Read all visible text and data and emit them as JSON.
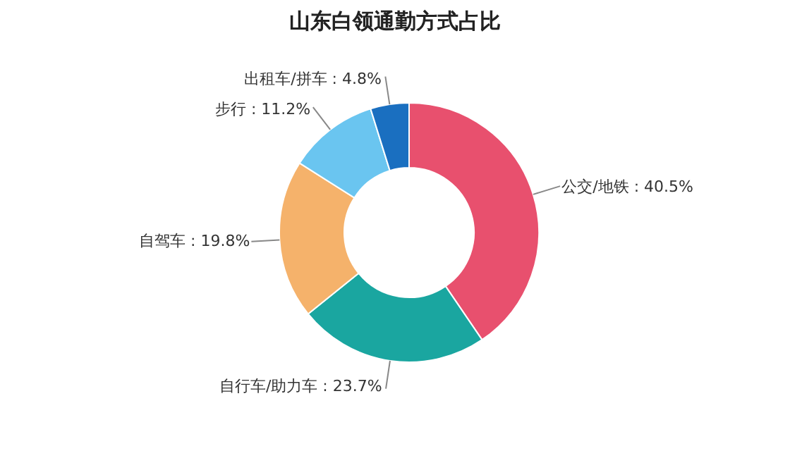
{
  "chart_data": {
    "type": "donut",
    "title": "山东白领通勤方式占比",
    "categories": [
      "公交/地铁",
      "自行车/助力车",
      "自驾车",
      "步行",
      "出租车/拼车"
    ],
    "values": [
      40.5,
      23.7,
      19.8,
      11.2,
      4.8
    ],
    "value_labels": [
      "40.5%",
      "23.7%",
      "19.8%",
      "11.2%",
      "4.8%"
    ],
    "colors": [
      "#e8506e",
      "#1aa6a0",
      "#f5b26b",
      "#6ac5f0",
      "#1a6fc0"
    ]
  }
}
